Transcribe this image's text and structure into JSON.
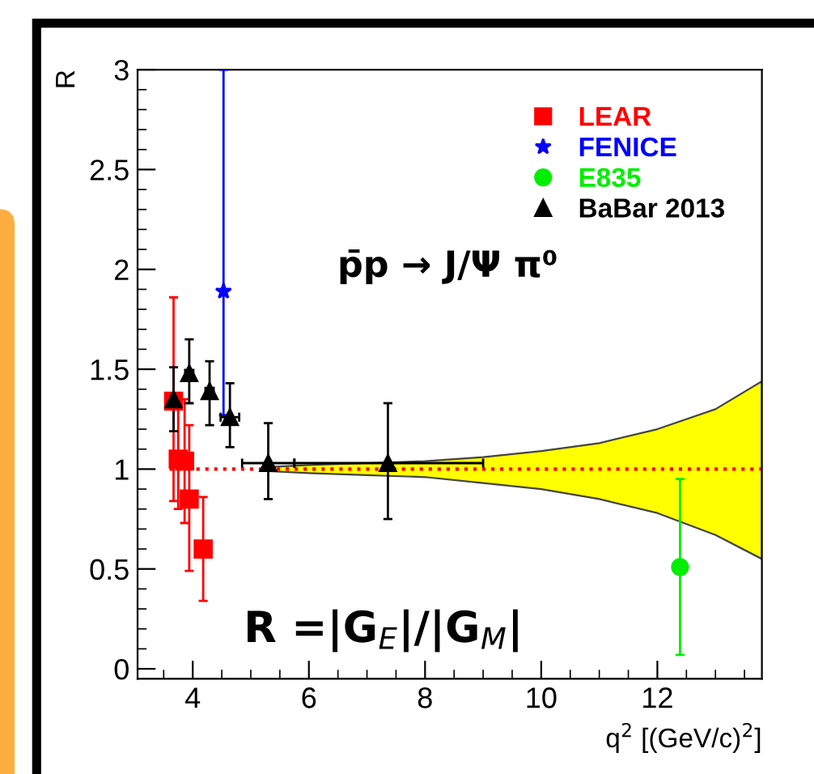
{
  "chart_data": {
    "type": "scatter",
    "xlabel": "q$^{2}$ [(GeV/c)$^{2}$]",
    "ylabel": "R",
    "xlim": [
      3.05,
      13.8
    ],
    "ylim": [
      -0.05,
      3
    ],
    "xticks": [
      4,
      6,
      8,
      10,
      12
    ],
    "yticks": [
      0,
      0.5,
      1,
      1.5,
      2,
      2.5,
      3
    ],
    "grid": false,
    "legend": "top right",
    "annotations": [
      "p̄p → J/Ψ π⁰",
      "R =|G$_{E}$|/|G$_{M}$|"
    ],
    "series": [
      {
        "type": "line",
        "color": "#ff0000",
        "line_style": "dotted",
        "marker": "none",
        "x": [
          3.6,
          5.3,
          6,
          7,
          8,
          9,
          10,
          11,
          12,
          13,
          13.8
        ],
        "values": [
          1,
          1,
          1,
          1,
          1,
          1,
          1,
          1,
          1,
          1,
          1
        ],
        "lower": [
          null,
          0.99,
          0.98,
          0.97,
          0.96,
          0.93,
          0.9,
          0.85,
          0.78,
          0.67,
          0.55
        ],
        "upper": [
          null,
          1.01,
          1.02,
          1.03,
          1.04,
          1.06,
          1.09,
          1.13,
          1.2,
          1.3,
          1.44
        ]
      },
      {
        "name": "LEAR",
        "color": "#ff0000",
        "marker": "square",
        "x": [
          3.67,
          3.75,
          3.86,
          3.94,
          4.18
        ],
        "values": [
          1.34,
          1.05,
          1.04,
          0.85,
          0.6
        ],
        "errors": [
          [
            0.84,
            1.86
          ],
          [
            0.8,
            1.3
          ],
          [
            0.73,
            1.35
          ],
          [
            0.49,
            1.22
          ],
          [
            0.34,
            0.86
          ]
        ]
      },
      {
        "name": "FENICE",
        "color": "#0000ff",
        "marker": "star",
        "x": [
          4.53
        ],
        "values": [
          1.89
        ],
        "errors": [
          [
            1.27,
            3.0
          ]
        ]
      },
      {
        "name": "E835",
        "color": "#00ee00",
        "marker": "circle",
        "x": [
          12.39
        ],
        "values": [
          0.51
        ],
        "errors": [
          [
            0.07,
            0.95
          ]
        ]
      },
      {
        "name": "BaBar 2013",
        "color": "#000000",
        "marker": "triangle",
        "x": [
          3.67,
          3.94,
          4.29,
          4.64,
          5.3,
          7.36
        ],
        "values": [
          1.35,
          1.48,
          1.39,
          1.26,
          1.03,
          1.03
        ],
        "errors": [
          [
            1.19,
            1.51
          ],
          [
            1.33,
            1.65
          ],
          [
            1.22,
            1.54
          ],
          [
            1.11,
            1.43
          ],
          [
            0.85,
            1.23
          ],
          [
            0.75,
            1.33
          ]
        ],
        "xerrors": [
          null,
          [
            3.87,
            4.01
          ],
          [
            4.22,
            4.36
          ],
          [
            4.48,
            4.8
          ],
          [
            4.85,
            5.75
          ],
          [
            5.75,
            9.0
          ]
        ]
      }
    ]
  }
}
